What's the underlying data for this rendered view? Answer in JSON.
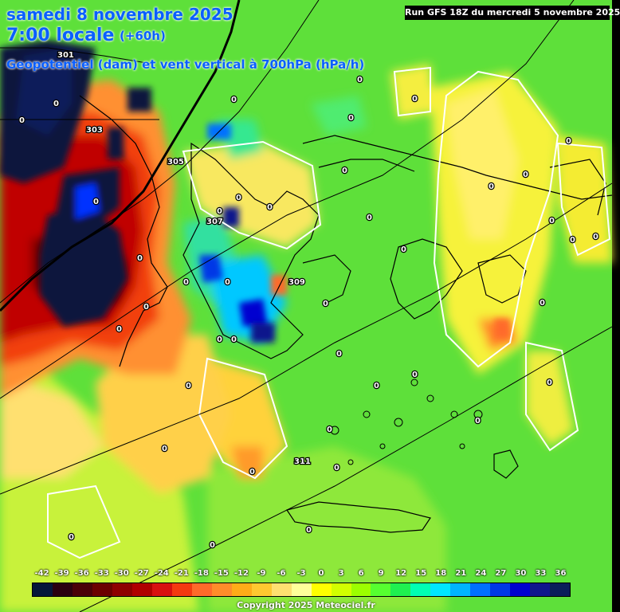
{
  "header": {
    "date": "samedi 8 novembre 2025",
    "time": "7:00 locale",
    "lead": "(+60h)",
    "parameter": "Geopotentiel (dam) et vent vertical à 700hPa (hPa/h)",
    "run": "Run GFS 18Z du mercredi 5 novembre 2025"
  },
  "legend": {
    "ticks": [
      "-42",
      "-39",
      "-36",
      "-33",
      "-30",
      "-27",
      "-24",
      "-21",
      "-18",
      "-15",
      "-12",
      "-9",
      "-6",
      "-3",
      "0",
      "3",
      "6",
      "9",
      "12",
      "15",
      "18",
      "21",
      "24",
      "27",
      "30",
      "33",
      "36"
    ],
    "colors": [
      "#05163a",
      "#2a0010",
      "#4a0008",
      "#6b0000",
      "#8e0000",
      "#b00000",
      "#d81010",
      "#f43a10",
      "#ff6a2a",
      "#ff8c2a",
      "#ffac18",
      "#ffc830",
      "#ffe070",
      "#ffff9a",
      "#ffff00",
      "#d2ff00",
      "#9cff00",
      "#56ff30",
      "#20f050",
      "#00ffb4",
      "#00e6ff",
      "#00b4ff",
      "#0070ff",
      "#0038e6",
      "#0000d0",
      "#10168c",
      "#0a1e5a"
    ]
  },
  "map_labels": {
    "geopotential": [
      "301",
      "303",
      "305",
      "307",
      "309",
      "311"
    ],
    "zero": "0"
  },
  "footer": {
    "copyright": "Copyright 2025 Meteociel.fr"
  }
}
